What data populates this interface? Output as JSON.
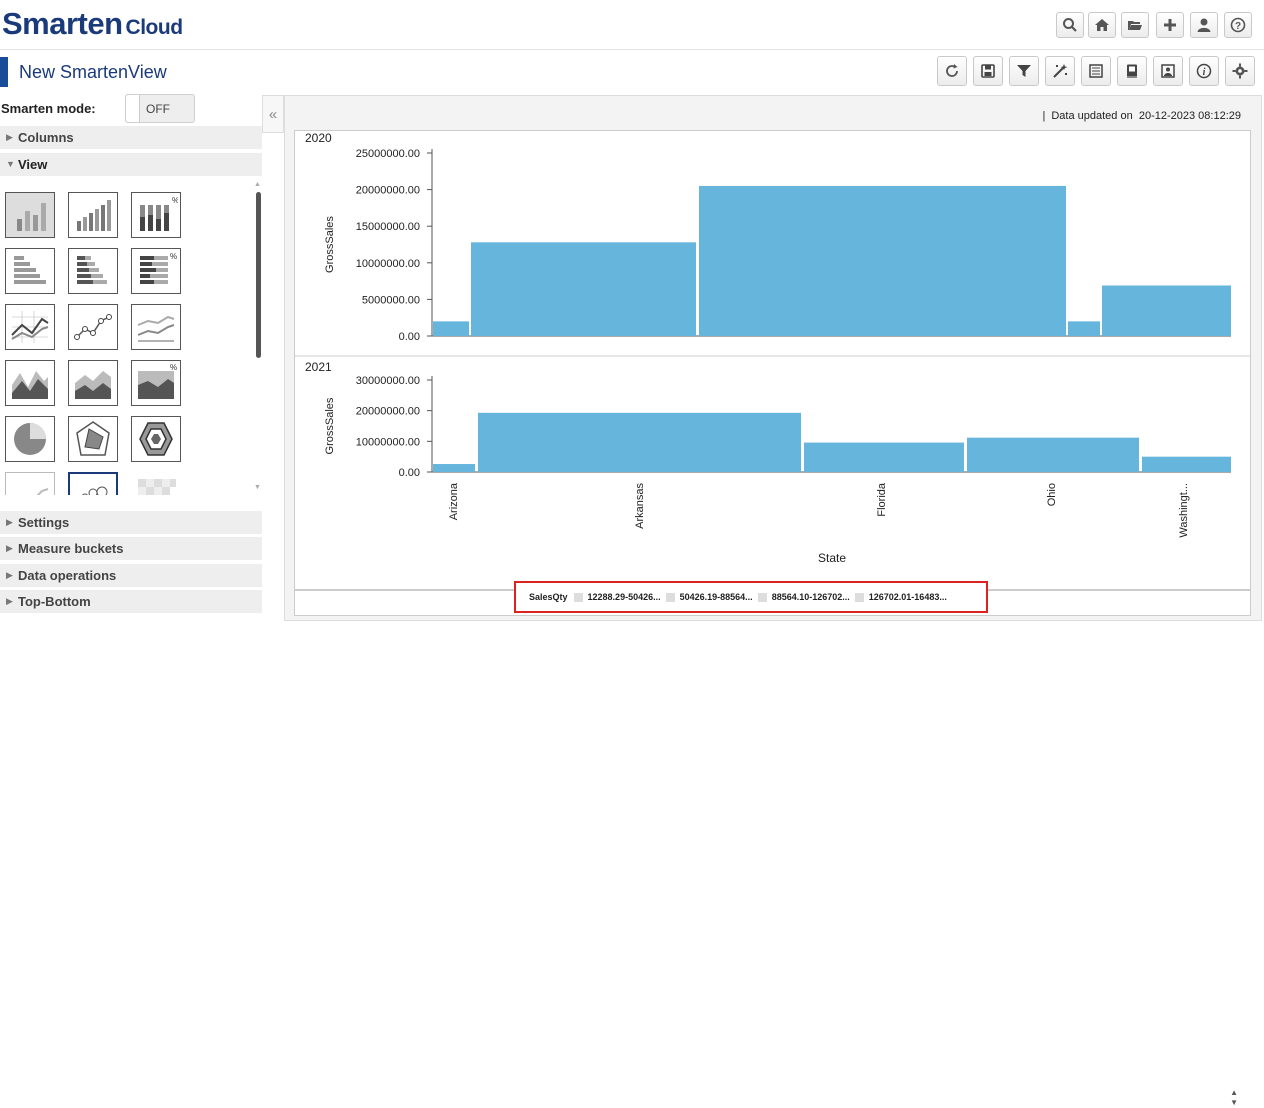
{
  "app": {
    "brand": "Smarten",
    "brand_sub": "Cloud",
    "view_title": "New SmartenView"
  },
  "top_icons": [
    "search-icon",
    "home-icon",
    "folder-open-icon",
    "plus-icon",
    "user-icon",
    "help-icon"
  ],
  "toolbar_icons": [
    "refresh-icon",
    "save-icon",
    "filter-icon",
    "magic-wand-icon",
    "list-view-icon",
    "book-icon",
    "image-export-icon",
    "info-icon",
    "settings-gear-icon"
  ],
  "sidebar": {
    "mode_label": "Smarten mode:",
    "mode_value": "OFF",
    "sections": [
      "Columns",
      "View"
    ],
    "bottom_sections": [
      "Settings",
      "Measure buckets",
      "Data operations",
      "Top-Bottom"
    ]
  },
  "status": {
    "updated_label": "Data updated on",
    "updated_value": "20-12-2023 08:12:29"
  },
  "legend": {
    "title": "SalesQty",
    "items": [
      "12288.29-50426...",
      "50426.19-88564...",
      "88564.10-126702...",
      "126702.01-16483..."
    ]
  },
  "accent_color": "#66b5dd",
  "chart_data": [
    {
      "type": "bar",
      "title": "2020",
      "ylabel": "GrossSales",
      "xlabel": "State",
      "ylim": [
        0,
        25000000
      ],
      "yticks": [
        "0.00",
        "5000000.00",
        "10000000.00",
        "15000000.00",
        "20000000.00",
        "25000000.00"
      ],
      "categories": [
        "Arizona",
        "Arkansas",
        "Florida",
        "Ohio",
        "Washingt..."
      ],
      "values": [
        2000000,
        12800000,
        20500000,
        2000000,
        6900000
      ]
    },
    {
      "type": "bar",
      "title": "2021",
      "ylabel": "GrossSales",
      "xlabel": "State",
      "ylim": [
        0,
        30000000
      ],
      "yticks": [
        "0.00",
        "10000000.00",
        "20000000.00",
        "30000000.00"
      ],
      "categories": [
        "Arizona",
        "Arkansas",
        "Florida",
        "Ohio",
        "Washingt..."
      ],
      "values": [
        2600000,
        19300000,
        9600000,
        11200000,
        5000000
      ]
    }
  ]
}
